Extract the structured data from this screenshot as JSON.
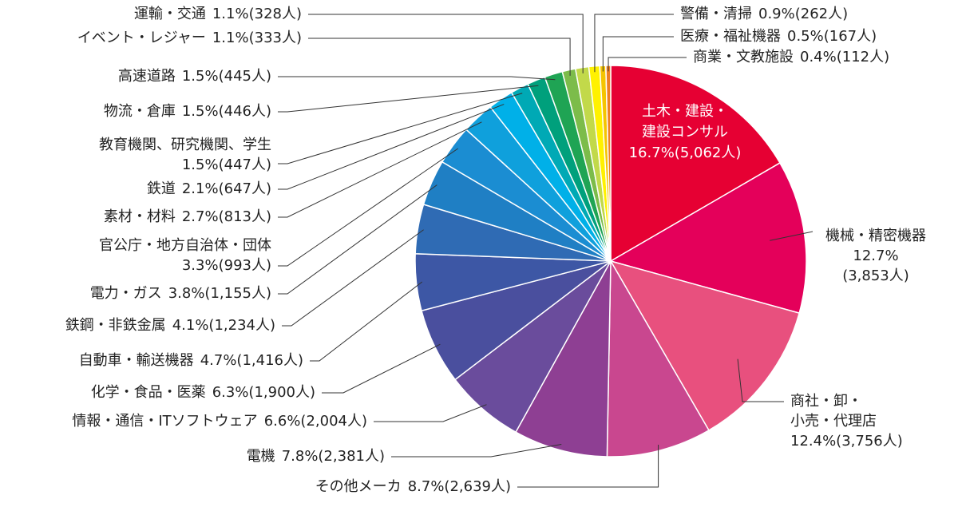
{
  "chart_data": {
    "type": "pie",
    "categories": [
      [
        "土木・建設・",
        "建設コンサル"
      ],
      "機械・精密機器",
      [
        "商社・卸・",
        "小売・代理店"
      ],
      "その他メーカ",
      "電機",
      "情報・通信・ITソフトウェア",
      "化学・食品・医薬",
      "自動車・輸送機器",
      "鉄鋼・非鉄金属",
      "電力・ガス",
      "官公庁・地方自治体・団体",
      "素材・材料",
      "鉄道",
      "教育機関、研究機関、学生",
      "物流・倉庫",
      "高速道路",
      "イベント・レジャー",
      "運輸・交通",
      "警備・清掃",
      "医療・福祉機器",
      "商業・文教施設"
    ],
    "values": [
      16.7,
      12.7,
      12.4,
      8.7,
      7.8,
      6.6,
      6.3,
      4.7,
      4.1,
      3.8,
      3.3,
      2.7,
      2.1,
      1.5,
      1.5,
      1.5,
      1.1,
      1.1,
      0.9,
      0.5,
      0.4
    ],
    "value_labels": [
      "16.7%(5,062人)",
      [
        "12.7%",
        "(3,853人)"
      ],
      "12.4%(3,756人)",
      "8.7%(2,639人)",
      "7.8%(2,381人)",
      "6.6%(2,004人)",
      "6.3%(1,900人)",
      "4.7%(1,416人)",
      "4.1%(1,234人)",
      "3.8%(1,155人)",
      "3.3%(993人)",
      "2.7%(813人)",
      "2.1%(647人)",
      "1.5%(447人)",
      "1.5%(446人)",
      "1.5%(445人)",
      "1.1%(333人)",
      "1.1%(328人)",
      "0.9%(262人)",
      "0.5%(167人)",
      "0.4%(112人)"
    ],
    "colors": [
      "#e60033",
      "#e4005a",
      "#e8507e",
      "#c9478f",
      "#8e3f93",
      "#6a4c9c",
      "#4a4f9e",
      "#3d57a5",
      "#2f6bb4",
      "#1f7fc4",
      "#1b8dd2",
      "#0fa0dc",
      "#00b0e8",
      "#00a9b5",
      "#00a07c",
      "#1fa454",
      "#7cbc4a",
      "#c2d94a",
      "#fff100",
      "#f5c400",
      "#ee7f22"
    ]
  }
}
